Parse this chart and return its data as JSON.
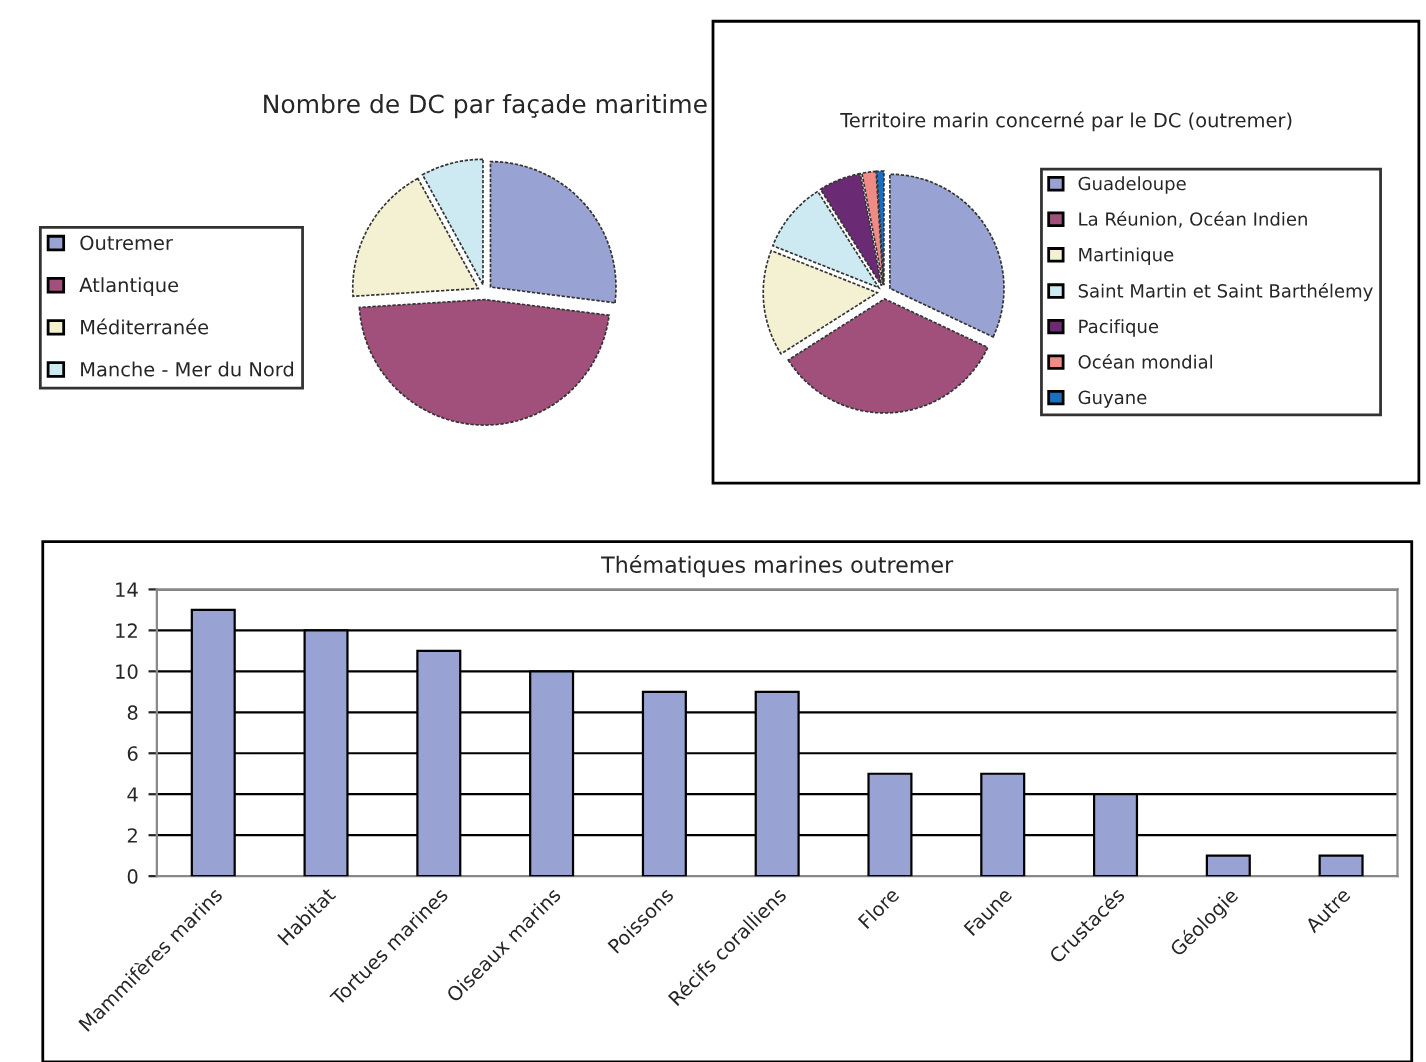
{
  "chart_data": [
    {
      "type": "pie",
      "title": "Nombre de DC par façade maritime",
      "categories": [
        "Outremer",
        "Atlantique",
        "Méditerranée",
        "Manche - Mer du Nord"
      ],
      "values": [
        27,
        47,
        18,
        8
      ],
      "colors": [
        "#99a3d3",
        "#a0507a",
        "#f3f1d2",
        "#cde9f2"
      ],
      "legend": "left"
    },
    {
      "type": "pie",
      "title": "Territoire marin concerné par le DC (outremer)",
      "categories": [
        "Guadeloupe",
        "La Réunion, Océan Indien",
        "Martinique",
        "Saint Martin et Saint Barthélemy",
        "Pacifique",
        "Océan mondial",
        "Guyane"
      ],
      "values": [
        32,
        34,
        15,
        10,
        6,
        2,
        1
      ],
      "colors": [
        "#99a3d3",
        "#a0507a",
        "#f3f1d2",
        "#cde9f2",
        "#6b2a74",
        "#f08a86",
        "#1b6fc0"
      ],
      "legend": "right"
    },
    {
      "type": "bar",
      "title": "Thématiques marines outremer",
      "categories": [
        "Mammifères marins",
        "Habitat",
        "Tortues marines",
        "Oiseaux marins",
        "Poissons",
        "Récifs coralliens",
        "Flore",
        "Faune",
        "Crustacés",
        "Géologie",
        "Autre"
      ],
      "values": [
        13,
        12,
        11,
        10,
        9,
        9,
        5,
        5,
        4,
        1,
        1
      ],
      "color": "#99a3d3",
      "ylim": [
        0,
        14
      ],
      "yticks": [
        0,
        2,
        4,
        6,
        8,
        10,
        12,
        14
      ],
      "grid": "y"
    }
  ]
}
